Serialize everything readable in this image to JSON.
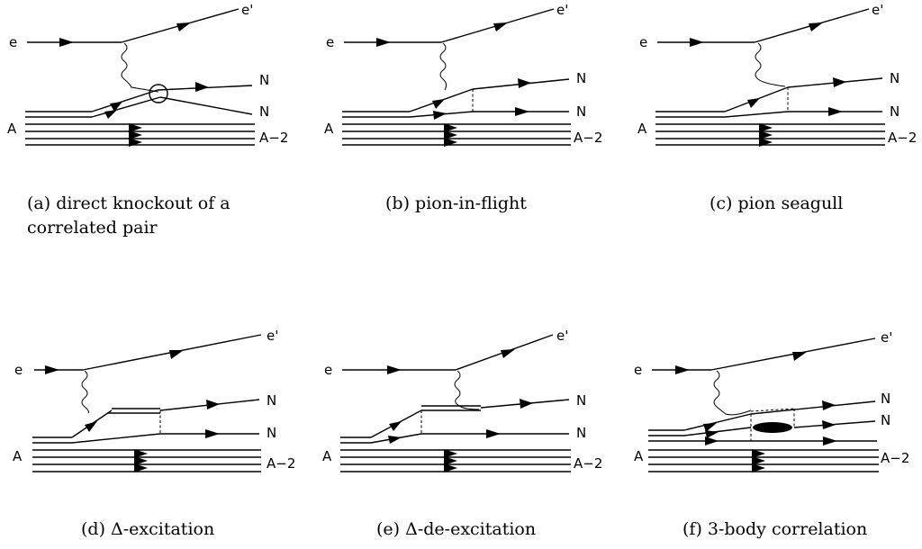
{
  "panels": [
    {
      "id": "a",
      "caption_lines": [
        "(a) direct knockout of a",
        "correlated pair"
      ],
      "labels": {
        "beam_in": "e",
        "beam_out": "e'",
        "target": "A",
        "nucleon_1": "N",
        "nucleon_2": "N",
        "residual": "A−2"
      }
    },
    {
      "id": "b",
      "caption_lines": [
        "(b) pion-in-flight"
      ],
      "labels": {
        "beam_in": "e",
        "beam_out": "e'",
        "target": "A",
        "nucleon_1": "N",
        "nucleon_2": "N",
        "residual": "A−2"
      }
    },
    {
      "id": "c",
      "caption_lines": [
        "(c) pion seagull"
      ],
      "labels": {
        "beam_in": "e",
        "beam_out": "e'",
        "target": "A",
        "nucleon_1": "N",
        "nucleon_2": "N",
        "residual": "A−2"
      }
    },
    {
      "id": "d",
      "caption_lines": [
        "(d) Δ-excitation"
      ],
      "labels": {
        "beam_in": "e",
        "beam_out": "e'",
        "target": "A",
        "nucleon_1": "N",
        "nucleon_2": "N",
        "residual": "A−2"
      }
    },
    {
      "id": "e",
      "caption_lines": [
        "(e) Δ-de-excitation"
      ],
      "labels": {
        "beam_in": "e",
        "beam_out": "e'",
        "target": "A",
        "nucleon_1": "N",
        "nucleon_2": "N",
        "residual": "A−2"
      }
    },
    {
      "id": "f",
      "caption_lines": [
        "(f) 3-body correlation"
      ],
      "labels": {
        "beam_in": "e",
        "beam_out": "e'",
        "target": "A",
        "nucleon_1": "N",
        "nucleon_2": "N",
        "residual": "A−2"
      }
    }
  ]
}
